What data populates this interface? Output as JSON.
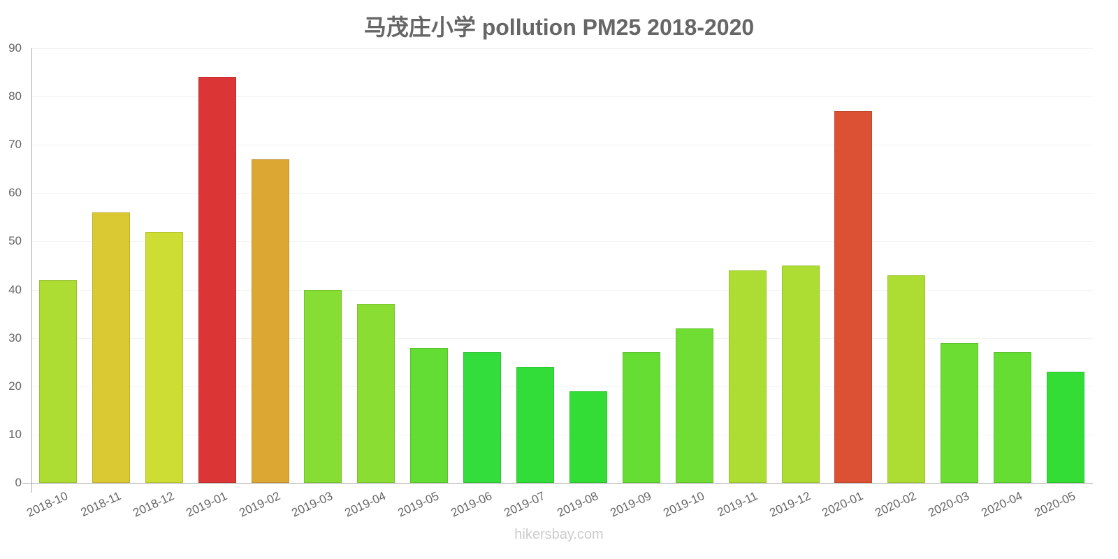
{
  "title": "马茂庄小学 pollution PM25 2018-2020",
  "footer": "hikersbay.com",
  "chart_data": {
    "type": "bar",
    "title": "马茂庄小学 pollution PM25 2018-2020",
    "xlabel": "",
    "ylabel": "",
    "ylim": [
      0,
      90
    ],
    "yticks": [
      0,
      10,
      20,
      30,
      40,
      50,
      60,
      70,
      80,
      90
    ],
    "grid": true,
    "legend": "none",
    "categories": [
      "2018-10",
      "2018-11",
      "2018-12",
      "2019-01",
      "2019-02",
      "2019-03",
      "2019-04",
      "2019-05",
      "2019-06",
      "2019-07",
      "2019-08",
      "2019-09",
      "2019-10",
      "2019-11",
      "2019-12",
      "2020-01",
      "2020-02",
      "2020-03",
      "2020-04",
      "2020-05"
    ],
    "values": [
      42,
      56,
      52,
      84,
      67,
      40,
      37,
      28,
      27,
      24,
      19,
      27,
      32,
      44,
      45,
      77,
      43,
      29,
      27,
      23
    ],
    "colors": [
      "#addd33",
      "#dbc933",
      "#cedd33",
      "#dc3535",
      "#dca733",
      "#86dd33",
      "#8ade33",
      "#63dd33",
      "#33dd3c",
      "#33dd39",
      "#33dd36",
      "#65dd33",
      "#6fdd33",
      "#addd33",
      "#addd33",
      "#dc5034",
      "#addd33",
      "#6bdd33",
      "#65dd33",
      "#33dd36"
    ]
  }
}
